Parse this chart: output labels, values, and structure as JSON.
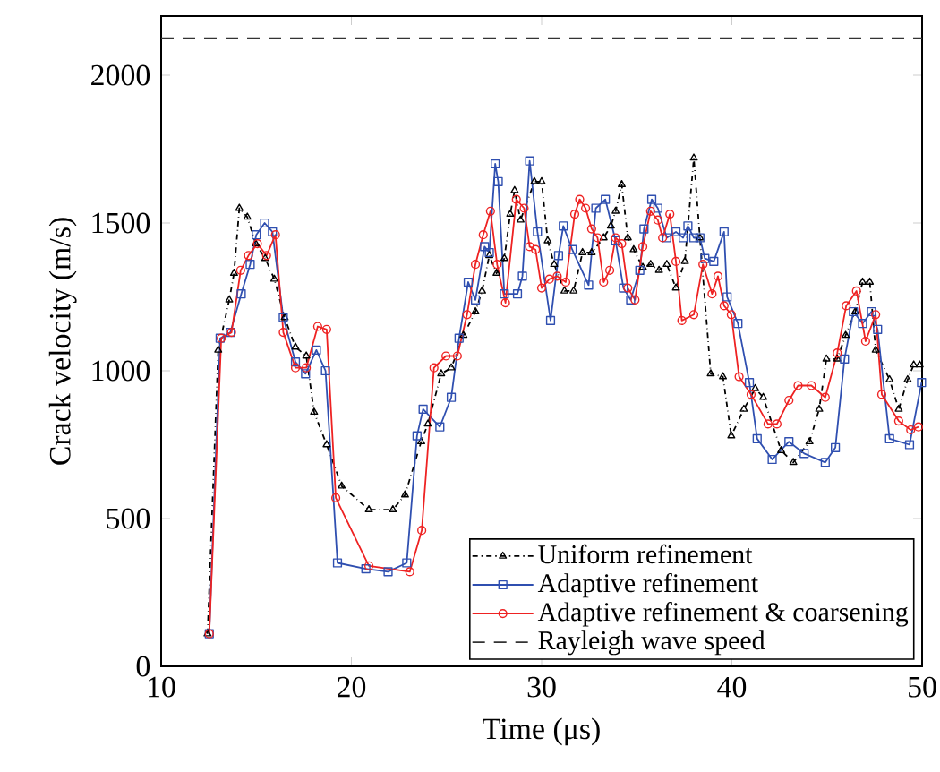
{
  "chart_data": {
    "type": "line",
    "xlabel": "Time (μs)",
    "ylabel": "Crack velocity (m/s)",
    "xlim": [
      10,
      50
    ],
    "ylim": [
      0,
      2200
    ],
    "xticks": [
      10,
      20,
      30,
      40,
      50
    ],
    "yticks": [
      0,
      500,
      1000,
      1500,
      2000
    ],
    "legend": "bottom right",
    "grid": false,
    "series": [
      {
        "name": "Uniform refinement",
        "color": "#000000",
        "marker": "triangle",
        "line_style": "dashed",
        "x": [
          12.44,
          13.0,
          13.58,
          13.83,
          14.11,
          14.53,
          14.97,
          15.47,
          15.95,
          16.49,
          17.06,
          17.63,
          18.04,
          18.7,
          19.49,
          20.92,
          22.18,
          22.82,
          23.67,
          24.02,
          24.72,
          25.25,
          25.89,
          26.52,
          26.87,
          27.25,
          27.63,
          28.04,
          28.35,
          28.58,
          28.89,
          29.62,
          30.0,
          30.32,
          30.66,
          31.2,
          31.68,
          32.15,
          32.63,
          33.26,
          33.64,
          33.89,
          34.21,
          34.53,
          34.84,
          35.32,
          35.73,
          36.17,
          36.58,
          37.06,
          37.53,
          38.0,
          38.32,
          38.89,
          39.53,
          39.97,
          40.63,
          41.23,
          41.65,
          42.59,
          43.23,
          44.08,
          44.59,
          44.97,
          45.54,
          45.98,
          46.49,
          46.87,
          47.25,
          47.56,
          48.29,
          48.77,
          49.24,
          49.56,
          49.87
        ],
        "values": [
          110,
          1070,
          1240,
          1330,
          1550,
          1520,
          1430,
          1380,
          1310,
          1180,
          1080,
          1050,
          860,
          750,
          610,
          530,
          530,
          580,
          760,
          820,
          990,
          1010,
          1120,
          1200,
          1270,
          1390,
          1330,
          1380,
          1530,
          1610,
          1510,
          1640,
          1640,
          1440,
          1360,
          1270,
          1270,
          1400,
          1400,
          1450,
          1490,
          1540,
          1630,
          1450,
          1410,
          1350,
          1360,
          1340,
          1360,
          1280,
          1370,
          1720,
          1450,
          990,
          980,
          780,
          870,
          940,
          910,
          730,
          690,
          760,
          870,
          1040,
          1040,
          1120,
          1200,
          1300,
          1300,
          1070,
          970,
          870,
          970,
          1020,
          1020
        ]
      },
      {
        "name": "Adaptive refinement",
        "color": "#2f4fb0",
        "marker": "square",
        "line_style": "solid",
        "x": [
          12.53,
          13.1,
          13.64,
          14.21,
          14.68,
          15.0,
          15.44,
          15.85,
          16.42,
          17.06,
          17.59,
          18.16,
          18.64,
          19.27,
          20.76,
          21.93,
          22.91,
          23.45,
          23.77,
          24.65,
          25.25,
          25.66,
          26.14,
          26.52,
          27.0,
          27.25,
          27.56,
          27.72,
          28.04,
          28.73,
          28.99,
          29.37,
          29.78,
          30.47,
          30.89,
          31.14,
          31.61,
          32.47,
          32.85,
          33.35,
          33.89,
          34.3,
          34.68,
          35.16,
          35.38,
          35.79,
          36.11,
          36.58,
          37.06,
          37.44,
          37.69,
          38.0,
          38.32,
          38.58,
          39.05,
          39.59,
          39.75,
          40.32,
          40.92,
          41.33,
          42.12,
          43.0,
          43.8,
          44.91,
          45.44,
          45.92,
          46.39,
          46.87,
          47.34,
          47.66,
          48.29,
          49.34,
          49.97
        ],
        "values": [
          110,
          1110,
          1130,
          1260,
          1360,
          1460,
          1500,
          1470,
          1180,
          1030,
          990,
          1070,
          1000,
          350,
          330,
          320,
          350,
          780,
          870,
          810,
          910,
          1110,
          1300,
          1240,
          1420,
          1400,
          1700,
          1640,
          1260,
          1260,
          1320,
          1710,
          1470,
          1170,
          1390,
          1490,
          1410,
          1290,
          1550,
          1580,
          1440,
          1280,
          1240,
          1340,
          1480,
          1580,
          1550,
          1450,
          1470,
          1450,
          1490,
          1450,
          1450,
          1380,
          1370,
          1470,
          1250,
          1160,
          960,
          770,
          700,
          760,
          720,
          690,
          740,
          1040,
          1200,
          1160,
          1200,
          1140,
          770,
          750,
          960
        ]
      },
      {
        "name": "Adaptive refinement & coarsening",
        "color": "#ee2222",
        "marker": "circle",
        "line_style": "solid",
        "x": [
          12.53,
          13.16,
          13.7,
          14.18,
          14.59,
          15.06,
          15.54,
          16.01,
          16.42,
          17.06,
          17.63,
          18.23,
          18.7,
          19.18,
          20.92,
          23.07,
          23.7,
          24.34,
          24.97,
          25.57,
          26.08,
          26.52,
          26.93,
          27.31,
          27.66,
          28.1,
          28.67,
          29.08,
          29.37,
          29.68,
          30.0,
          30.41,
          30.82,
          31.27,
          31.74,
          32.0,
          32.31,
          32.63,
          32.94,
          33.26,
          33.58,
          33.89,
          34.21,
          34.53,
          34.91,
          35.32,
          35.73,
          36.11,
          36.36,
          36.74,
          37.06,
          37.37,
          38.0,
          38.48,
          38.96,
          39.27,
          39.59,
          39.97,
          40.38,
          41.01,
          41.9,
          42.37,
          43.0,
          43.48,
          44.18,
          44.91,
          45.54,
          46.01,
          46.55,
          47.03,
          47.56,
          47.88,
          48.77,
          49.4,
          49.81
        ],
        "values": [
          110,
          1110,
          1130,
          1340,
          1390,
          1430,
          1390,
          1460,
          1130,
          1010,
          1010,
          1150,
          1140,
          570,
          340,
          320,
          460,
          1010,
          1050,
          1050,
          1190,
          1360,
          1460,
          1540,
          1360,
          1230,
          1580,
          1550,
          1420,
          1410,
          1280,
          1310,
          1320,
          1300,
          1530,
          1580,
          1550,
          1480,
          1450,
          1300,
          1340,
          1450,
          1430,
          1280,
          1240,
          1420,
          1540,
          1510,
          1450,
          1530,
          1370,
          1170,
          1190,
          1360,
          1260,
          1320,
          1220,
          1190,
          980,
          920,
          820,
          820,
          900,
          950,
          950,
          910,
          1060,
          1220,
          1270,
          1100,
          1190,
          920,
          830,
          800,
          810
        ]
      }
    ],
    "ref_lines": [
      {
        "axis": "y",
        "value": 2125,
        "label": "Rayleigh wave speed",
        "color": "#333333",
        "line_style": "dashed"
      }
    ]
  }
}
